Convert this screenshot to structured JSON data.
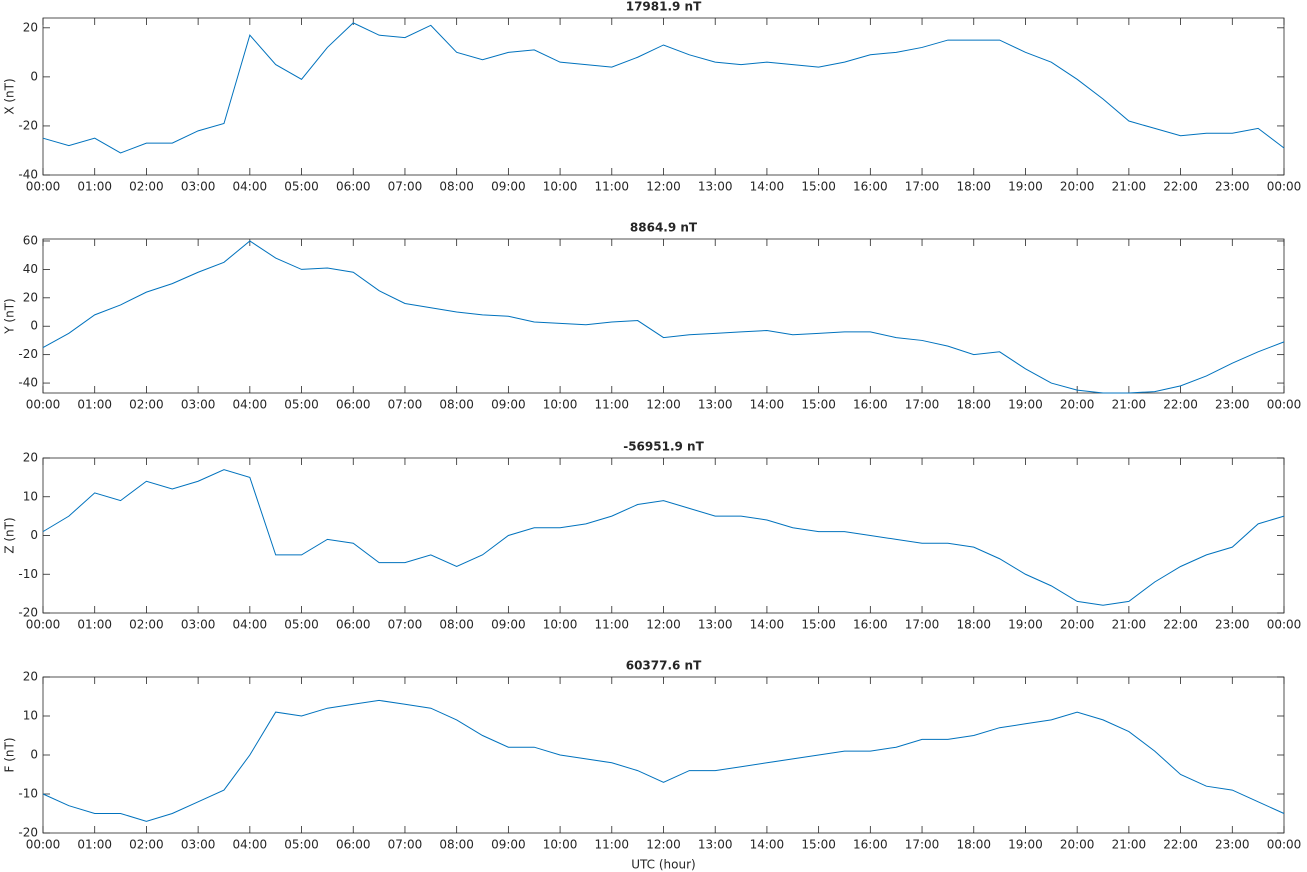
{
  "chart_data": [
    {
      "type": "line",
      "title": "17981.9 nT",
      "ylabel": "X (nT)",
      "color": "#0072bd",
      "x": [
        0,
        0.5,
        1,
        1.5,
        2,
        2.5,
        3,
        3.5,
        4,
        4.5,
        5,
        5.5,
        6,
        6.5,
        7,
        7.5,
        8,
        8.5,
        9,
        9.5,
        10,
        10.5,
        11,
        11.5,
        12,
        12.5,
        13,
        13.5,
        14,
        14.5,
        15,
        15.5,
        16,
        16.5,
        17,
        17.5,
        18,
        18.5,
        19,
        19.5,
        20,
        20.5,
        21,
        21.5,
        22,
        22.5,
        23,
        23.5,
        24
      ],
      "values": [
        -25,
        -28,
        -25,
        -31,
        -27,
        -27,
        -22,
        -19,
        17,
        5,
        -1,
        12,
        22,
        17,
        16,
        21,
        10,
        7,
        10,
        11,
        6,
        5,
        4,
        8,
        13,
        9,
        6,
        5,
        6,
        5,
        4,
        6,
        9,
        10,
        12,
        15,
        15,
        15,
        10,
        6,
        -1,
        -9,
        -18,
        -21,
        -24,
        -23,
        -23,
        -21,
        -29
      ],
      "xlim": [
        0,
        24
      ],
      "xticks": [
        {
          "value": 0,
          "label": "00:00"
        },
        {
          "value": 1,
          "label": "01:00"
        },
        {
          "value": 2,
          "label": "02:00"
        },
        {
          "value": 3,
          "label": "03:00"
        },
        {
          "value": 4,
          "label": "04:00"
        },
        {
          "value": 5,
          "label": "05:00"
        },
        {
          "value": 6,
          "label": "06:00"
        },
        {
          "value": 7,
          "label": "07:00"
        },
        {
          "value": 8,
          "label": "08:00"
        },
        {
          "value": 9,
          "label": "09:00"
        },
        {
          "value": 10,
          "label": "10:00"
        },
        {
          "value": 11,
          "label": "11:00"
        },
        {
          "value": 12,
          "label": "12:00"
        },
        {
          "value": 13,
          "label": "13:00"
        },
        {
          "value": 14,
          "label": "14:00"
        },
        {
          "value": 15,
          "label": "15:00"
        },
        {
          "value": 16,
          "label": "16:00"
        },
        {
          "value": 17,
          "label": "17:00"
        },
        {
          "value": 18,
          "label": "18:00"
        },
        {
          "value": 19,
          "label": "19:00"
        },
        {
          "value": 20,
          "label": "20:00"
        },
        {
          "value": 21,
          "label": "21:00"
        },
        {
          "value": 22,
          "label": "22:00"
        },
        {
          "value": 23,
          "label": "23:00"
        },
        {
          "value": 24,
          "label": "00:00"
        }
      ],
      "ylim": [
        -40,
        24
      ],
      "yticks": [
        -40,
        -20,
        0,
        20
      ]
    },
    {
      "type": "line",
      "title": "8864.9 nT",
      "ylabel": "Y (nT)",
      "color": "#0072bd",
      "x": [
        0,
        0.5,
        1,
        1.5,
        2,
        2.5,
        3,
        3.5,
        4,
        4.5,
        5,
        5.5,
        6,
        6.5,
        7,
        7.5,
        8,
        8.5,
        9,
        9.5,
        10,
        10.5,
        11,
        11.5,
        12,
        12.5,
        13,
        13.5,
        14,
        14.5,
        15,
        15.5,
        16,
        16.5,
        17,
        17.5,
        18,
        18.5,
        19,
        19.5,
        20,
        20.5,
        21,
        21.5,
        22,
        22.5,
        23,
        23.5,
        24
      ],
      "values": [
        -15,
        -5,
        8,
        15,
        24,
        30,
        38,
        45,
        60,
        48,
        40,
        41,
        38,
        25,
        16,
        13,
        10,
        8,
        7,
        3,
        2,
        1,
        3,
        4,
        -8,
        -6,
        -5,
        -4,
        -3,
        -6,
        -5,
        -4,
        -4,
        -8,
        -10,
        -14,
        -20,
        -18,
        -30,
        -40,
        -45,
        -47,
        -47,
        -46,
        -42,
        -35,
        -26,
        -18,
        -11
      ],
      "xlim": [
        0,
        24
      ],
      "xticks": [
        {
          "value": 0,
          "label": "00:00"
        },
        {
          "value": 1,
          "label": "01:00"
        },
        {
          "value": 2,
          "label": "02:00"
        },
        {
          "value": 3,
          "label": "03:00"
        },
        {
          "value": 4,
          "label": "04:00"
        },
        {
          "value": 5,
          "label": "05:00"
        },
        {
          "value": 6,
          "label": "06:00"
        },
        {
          "value": 7,
          "label": "07:00"
        },
        {
          "value": 8,
          "label": "08:00"
        },
        {
          "value": 9,
          "label": "09:00"
        },
        {
          "value": 10,
          "label": "10:00"
        },
        {
          "value": 11,
          "label": "11:00"
        },
        {
          "value": 12,
          "label": "12:00"
        },
        {
          "value": 13,
          "label": "13:00"
        },
        {
          "value": 14,
          "label": "14:00"
        },
        {
          "value": 15,
          "label": "15:00"
        },
        {
          "value": 16,
          "label": "16:00"
        },
        {
          "value": 17,
          "label": "17:00"
        },
        {
          "value": 18,
          "label": "18:00"
        },
        {
          "value": 19,
          "label": "19:00"
        },
        {
          "value": 20,
          "label": "20:00"
        },
        {
          "value": 21,
          "label": "21:00"
        },
        {
          "value": 22,
          "label": "22:00"
        },
        {
          "value": 23,
          "label": "23:00"
        },
        {
          "value": 24,
          "label": "00:00"
        }
      ],
      "ylim": [
        -47,
        61.4
      ],
      "yticks": [
        -40,
        -20,
        0,
        20,
        40,
        60
      ]
    },
    {
      "type": "line",
      "title": "-56951.9 nT",
      "ylabel": "Z (nT)",
      "color": "#0072bd",
      "x": [
        0,
        0.5,
        1,
        1.5,
        2,
        2.5,
        3,
        3.5,
        4,
        4.5,
        5,
        5.5,
        6,
        6.5,
        7,
        7.5,
        8,
        8.5,
        9,
        9.5,
        10,
        10.5,
        11,
        11.5,
        12,
        12.5,
        13,
        13.5,
        14,
        14.5,
        15,
        15.5,
        16,
        16.5,
        17,
        17.5,
        18,
        18.5,
        19,
        19.5,
        20,
        20.5,
        21,
        21.5,
        22,
        22.5,
        23,
        23.5,
        24
      ],
      "values": [
        1,
        5,
        11,
        9,
        14,
        12,
        14,
        17,
        15,
        -5,
        -5,
        -1,
        -2,
        -7,
        -7,
        -5,
        -8,
        -5,
        0,
        2,
        2,
        3,
        5,
        8,
        9,
        7,
        5,
        5,
        4,
        2,
        1,
        1,
        0,
        -1,
        -2,
        -2,
        -3,
        -6,
        -10,
        -13,
        -17,
        -18,
        -17,
        -12,
        -8,
        -5,
        -3,
        3,
        5
      ],
      "xlim": [
        0,
        24
      ],
      "xticks": [
        {
          "value": 0,
          "label": "00:00"
        },
        {
          "value": 1,
          "label": "01:00"
        },
        {
          "value": 2,
          "label": "02:00"
        },
        {
          "value": 3,
          "label": "03:00"
        },
        {
          "value": 4,
          "label": "04:00"
        },
        {
          "value": 5,
          "label": "05:00"
        },
        {
          "value": 6,
          "label": "06:00"
        },
        {
          "value": 7,
          "label": "07:00"
        },
        {
          "value": 8,
          "label": "08:00"
        },
        {
          "value": 9,
          "label": "09:00"
        },
        {
          "value": 10,
          "label": "10:00"
        },
        {
          "value": 11,
          "label": "11:00"
        },
        {
          "value": 12,
          "label": "12:00"
        },
        {
          "value": 13,
          "label": "13:00"
        },
        {
          "value": 14,
          "label": "14:00"
        },
        {
          "value": 15,
          "label": "15:00"
        },
        {
          "value": 16,
          "label": "16:00"
        },
        {
          "value": 17,
          "label": "17:00"
        },
        {
          "value": 18,
          "label": "18:00"
        },
        {
          "value": 19,
          "label": "19:00"
        },
        {
          "value": 20,
          "label": "20:00"
        },
        {
          "value": 21,
          "label": "21:00"
        },
        {
          "value": 22,
          "label": "22:00"
        },
        {
          "value": 23,
          "label": "23:00"
        },
        {
          "value": 24,
          "label": "00:00"
        }
      ],
      "ylim": [
        -20,
        20
      ],
      "yticks": [
        -20,
        -10,
        0,
        10,
        20
      ]
    },
    {
      "type": "line",
      "title": "60377.6 nT",
      "ylabel": "F (nT)",
      "xlabel": "UTC (hour)",
      "color": "#0072bd",
      "x": [
        0,
        0.5,
        1,
        1.5,
        2,
        2.5,
        3,
        3.5,
        4,
        4.5,
        5,
        5.5,
        6,
        6.5,
        7,
        7.5,
        8,
        8.5,
        9,
        9.5,
        10,
        10.5,
        11,
        11.5,
        12,
        12.5,
        13,
        13.5,
        14,
        14.5,
        15,
        15.5,
        16,
        16.5,
        17,
        17.5,
        18,
        18.5,
        19,
        19.5,
        20,
        20.5,
        21,
        21.5,
        22,
        22.5,
        23,
        23.5,
        24
      ],
      "values": [
        -10,
        -13,
        -15,
        -15,
        -17,
        -15,
        -12,
        -9,
        0,
        11,
        10,
        12,
        13,
        14,
        13,
        12,
        9,
        5,
        2,
        2,
        0,
        -1,
        -2,
        -4,
        -7,
        -4,
        -4,
        -3,
        -2,
        -1,
        0,
        1,
        1,
        2,
        4,
        4,
        5,
        7,
        8,
        9,
        11,
        9,
        6,
        1,
        -5,
        -8,
        -9,
        -12,
        -15
      ],
      "xlim": [
        0,
        24
      ],
      "xticks": [
        {
          "value": 0,
          "label": "00:00"
        },
        {
          "value": 1,
          "label": "01:00"
        },
        {
          "value": 2,
          "label": "02:00"
        },
        {
          "value": 3,
          "label": "03:00"
        },
        {
          "value": 4,
          "label": "04:00"
        },
        {
          "value": 5,
          "label": "05:00"
        },
        {
          "value": 6,
          "label": "06:00"
        },
        {
          "value": 7,
          "label": "07:00"
        },
        {
          "value": 8,
          "label": "08:00"
        },
        {
          "value": 9,
          "label": "09:00"
        },
        {
          "value": 10,
          "label": "10:00"
        },
        {
          "value": 11,
          "label": "11:00"
        },
        {
          "value": 12,
          "label": "12:00"
        },
        {
          "value": 13,
          "label": "13:00"
        },
        {
          "value": 14,
          "label": "14:00"
        },
        {
          "value": 15,
          "label": "15:00"
        },
        {
          "value": 16,
          "label": "16:00"
        },
        {
          "value": 17,
          "label": "17:00"
        },
        {
          "value": 18,
          "label": "18:00"
        },
        {
          "value": 19,
          "label": "19:00"
        },
        {
          "value": 20,
          "label": "20:00"
        },
        {
          "value": 21,
          "label": "21:00"
        },
        {
          "value": 22,
          "label": "22:00"
        },
        {
          "value": 23,
          "label": "23:00"
        },
        {
          "value": 24,
          "label": "00:00"
        }
      ],
      "ylim": [
        -20,
        20
      ],
      "yticks": [
        -20,
        -10,
        0,
        10,
        20
      ]
    }
  ]
}
